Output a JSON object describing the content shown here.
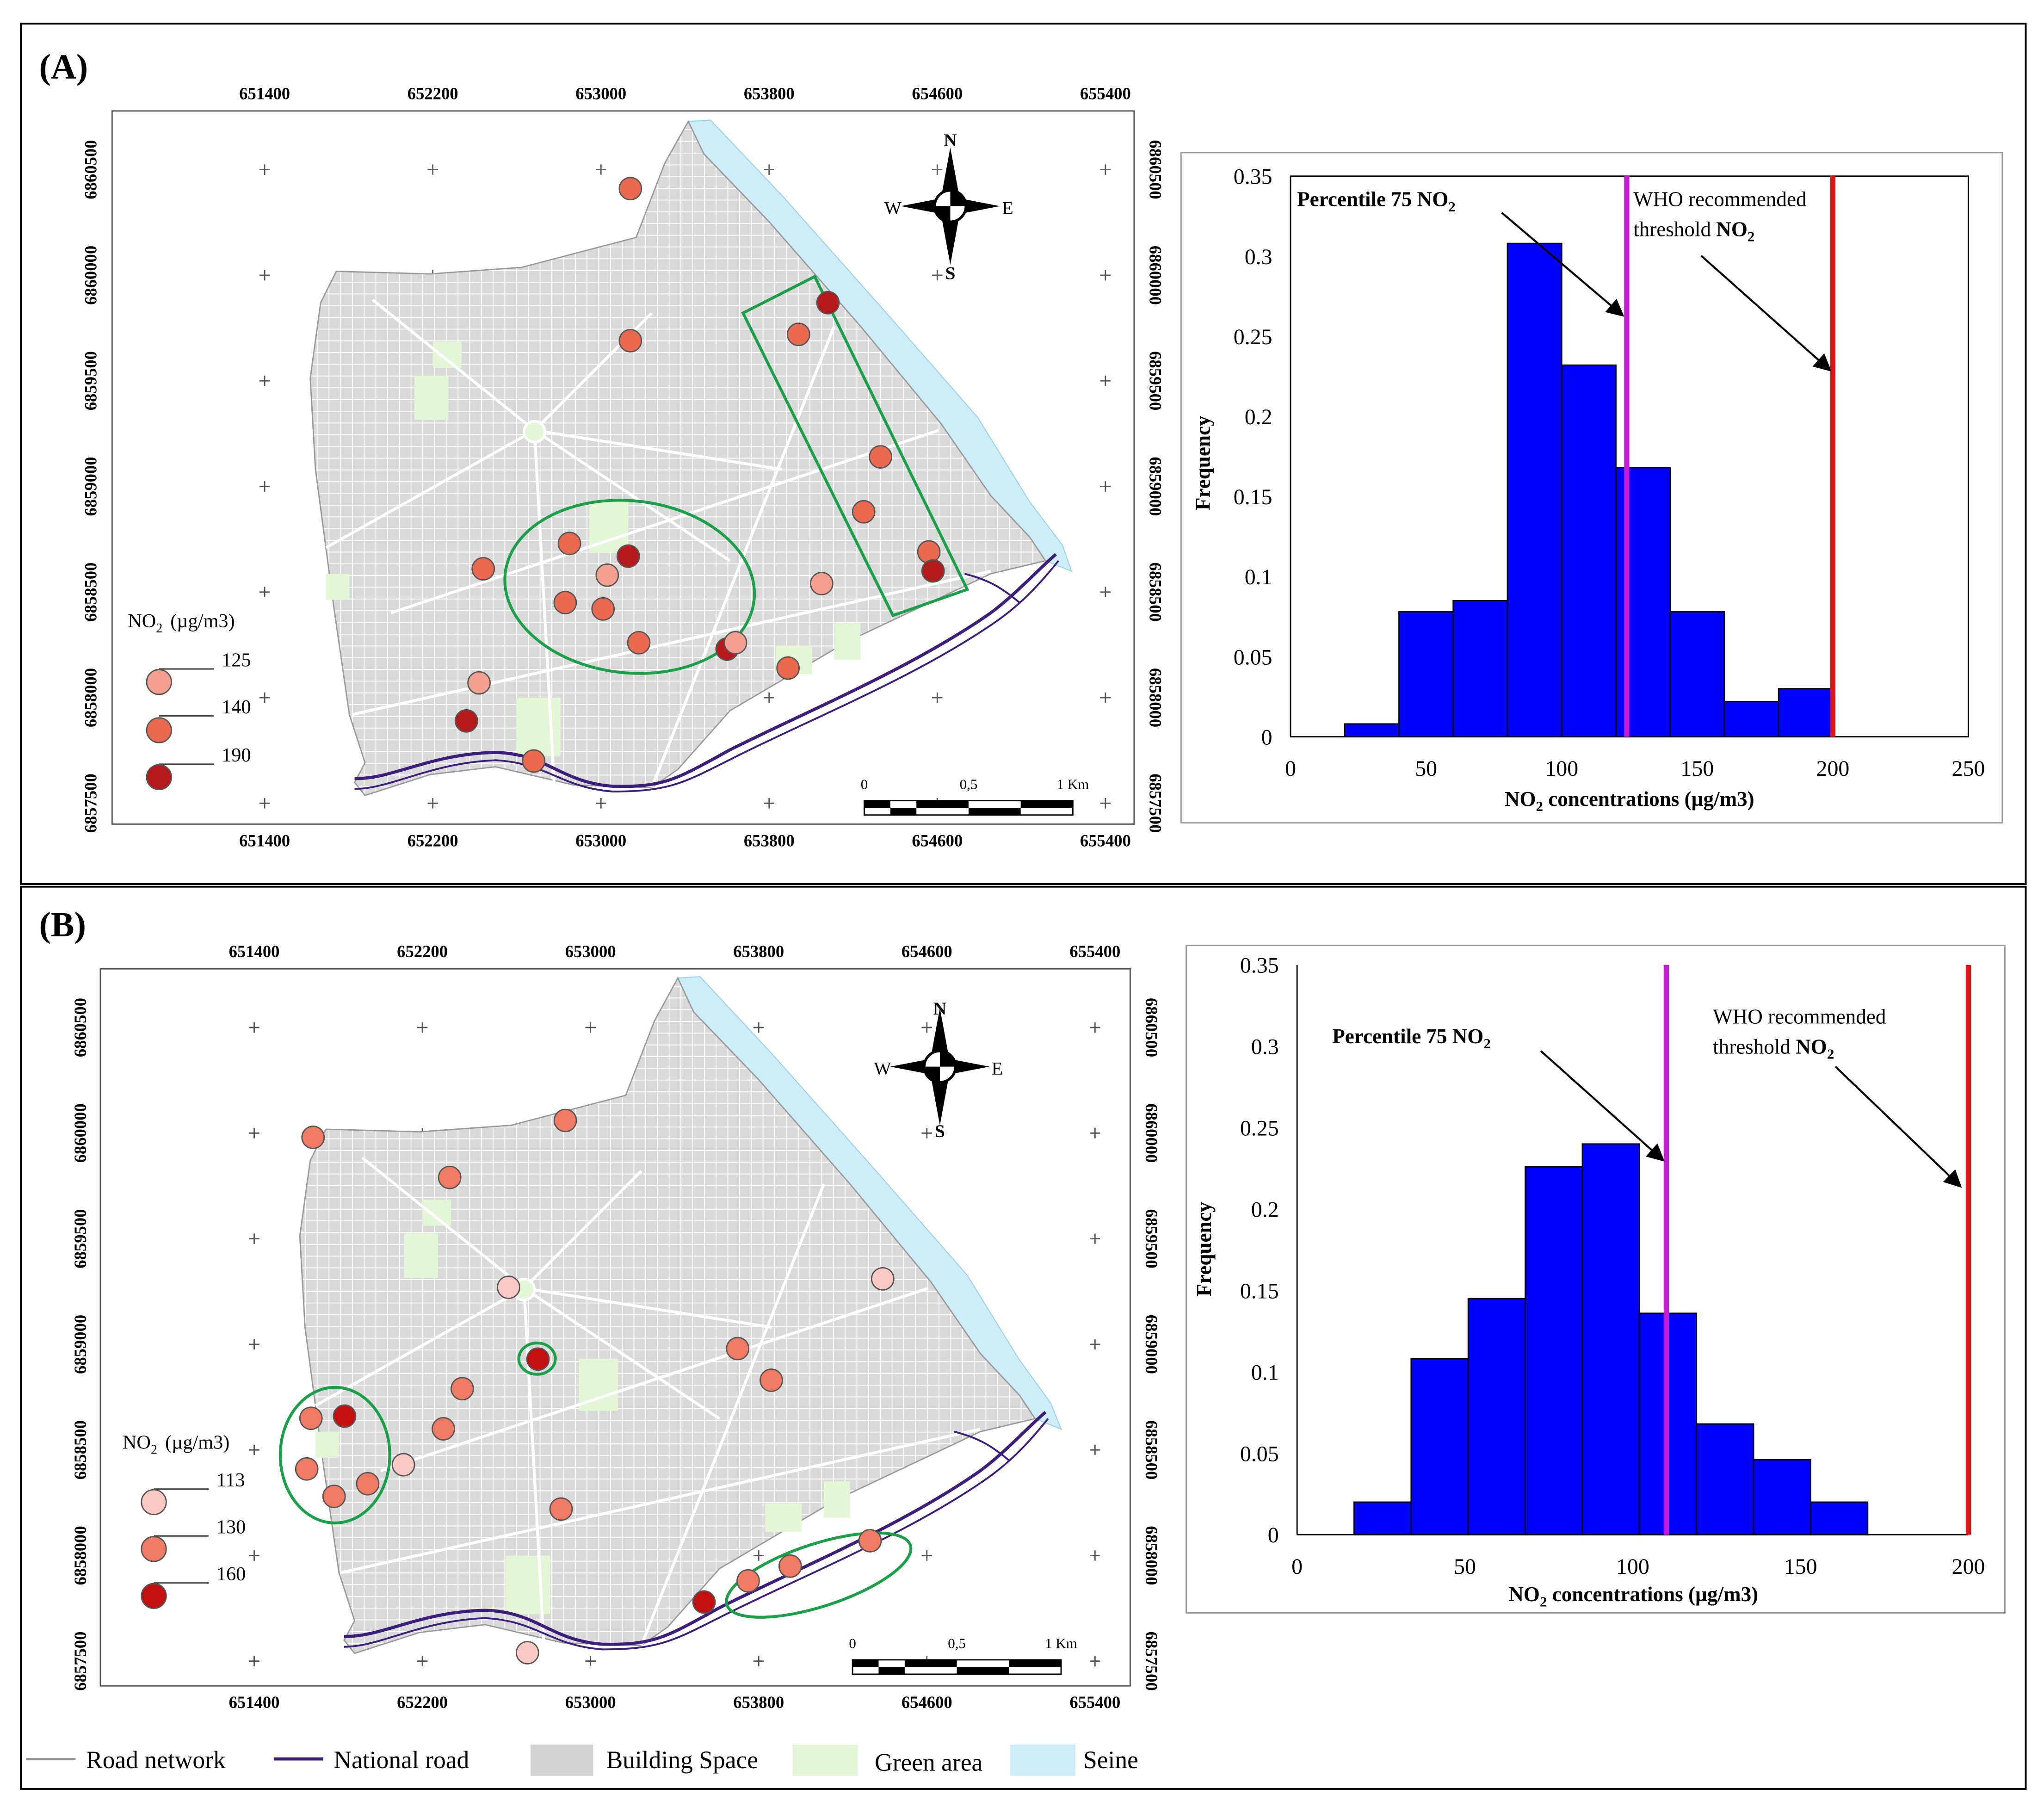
{
  "panels": [
    {
      "label": "(A)",
      "map": {
        "x_ticks": [
          "651400",
          "652200",
          "653000",
          "653800",
          "654600",
          "655400"
        ],
        "y_ticks": [
          "6860500",
          "6860000",
          "6859500",
          "6859000",
          "6858500",
          "6858000",
          "6857500"
        ],
        "compass": {
          "n": "N",
          "s": "S",
          "e": "E",
          "w": "W"
        },
        "scale": {
          "labels": [
            "0",
            "0,5",
            "1 Km"
          ]
        },
        "legend": {
          "title": "NO",
          "title_sub": "2",
          "title_unit": "(µg/m3)",
          "values": [
            "125",
            "140",
            "190"
          ]
        },
        "symbol_colors": [
          "#f4a090",
          "#ea6a50",
          "#b51a1a"
        ],
        "stations": [
          {
            "x": 653140,
            "y": 6860410,
            "v": 140
          },
          {
            "x": 654080,
            "y": 6859870,
            "v": 190
          },
          {
            "x": 653940,
            "y": 6859720,
            "v": 140
          },
          {
            "x": 653140,
            "y": 6859690,
            "v": 140
          },
          {
            "x": 654330,
            "y": 6859140,
            "v": 140
          },
          {
            "x": 654250,
            "y": 6858880,
            "v": 140
          },
          {
            "x": 654560,
            "y": 6858690,
            "v": 140
          },
          {
            "x": 654580,
            "y": 6858600,
            "v": 190
          },
          {
            "x": 653130,
            "y": 6858670,
            "v": 190
          },
          {
            "x": 652850,
            "y": 6858730,
            "v": 140
          },
          {
            "x": 652440,
            "y": 6858610,
            "v": 140
          },
          {
            "x": 653030,
            "y": 6858580,
            "v": 125
          },
          {
            "x": 654050,
            "y": 6858540,
            "v": 125
          },
          {
            "x": 652830,
            "y": 6858450,
            "v": 140
          },
          {
            "x": 653010,
            "y": 6858420,
            "v": 140
          },
          {
            "x": 653180,
            "y": 6858260,
            "v": 140
          },
          {
            "x": 653600,
            "y": 6858230,
            "v": 190
          },
          {
            "x": 653640,
            "y": 6858260,
            "v": 125
          },
          {
            "x": 653890,
            "y": 6858140,
            "v": 140
          },
          {
            "x": 652420,
            "y": 6858070,
            "v": 125
          },
          {
            "x": 652360,
            "y": 6857890,
            "v": 190
          },
          {
            "x": 652680,
            "y": 6857700,
            "v": 140
          }
        ]
      },
      "chart": {
        "ylabel": "Frequency",
        "xlabel": {
          "pre": "NO",
          "sub": "2",
          "post": " concentrations  (µg/m3)"
        },
        "y_ticks": [
          "0",
          "0.05",
          "0.1",
          "0.15",
          "0.2",
          "0.25",
          "0.3",
          "0.35"
        ],
        "x_ticks": [
          "0",
          "50",
          "100",
          "150",
          "200",
          "250"
        ],
        "annot_p75": {
          "pre": "Percentile 75  NO",
          "sub": "2"
        },
        "annot_who": {
          "line1": "WHO recommended",
          "line2_pre": "threshold ",
          "line2_bold": "NO",
          "line2_sub": "2"
        }
      }
    },
    {
      "label": "(B)",
      "map": {
        "x_ticks": [
          "651400",
          "652200",
          "653000",
          "653800",
          "654600",
          "655400"
        ],
        "y_ticks": [
          "6860500",
          "6860000",
          "6859500",
          "6859000",
          "6858500",
          "6858000",
          "6857500"
        ],
        "compass": {
          "n": "N",
          "s": "S",
          "e": "E",
          "w": "W"
        },
        "scale": {
          "labels": [
            "0",
            "0,5",
            "1 Km"
          ]
        },
        "legend": {
          "title": "NO",
          "title_sub": "2",
          "title_unit": "(µg/m3)",
          "values": [
            "113",
            "130",
            "160"
          ]
        },
        "symbol_colors": [
          "#fbc9c4",
          "#f07a62",
          "#c40f0f"
        ],
        "stations": [
          {
            "x": 651680,
            "y": 6859980,
            "v": 130
          },
          {
            "x": 652880,
            "y": 6860060,
            "v": 130
          },
          {
            "x": 652330,
            "y": 6859790,
            "v": 130
          },
          {
            "x": 652610,
            "y": 6859270,
            "v": 113
          },
          {
            "x": 652750,
            "y": 6858930,
            "v": 160
          },
          {
            "x": 652390,
            "y": 6858790,
            "v": 130
          },
          {
            "x": 652300,
            "y": 6858600,
            "v": 130
          },
          {
            "x": 651670,
            "y": 6858650,
            "v": 130
          },
          {
            "x": 651830,
            "y": 6858660,
            "v": 160
          },
          {
            "x": 652110,
            "y": 6858430,
            "v": 113
          },
          {
            "x": 651650,
            "y": 6858410,
            "v": 130
          },
          {
            "x": 651940,
            "y": 6858340,
            "v": 130
          },
          {
            "x": 651780,
            "y": 6858280,
            "v": 130
          },
          {
            "x": 652860,
            "y": 6858220,
            "v": 130
          },
          {
            "x": 653700,
            "y": 6858980,
            "v": 130
          },
          {
            "x": 653860,
            "y": 6858830,
            "v": 130
          },
          {
            "x": 654390,
            "y": 6859310,
            "v": 113
          },
          {
            "x": 654330,
            "y": 6858070,
            "v": 130
          },
          {
            "x": 653950,
            "y": 6857950,
            "v": 130
          },
          {
            "x": 653750,
            "y": 6857880,
            "v": 130
          },
          {
            "x": 653540,
            "y": 6857780,
            "v": 160
          },
          {
            "x": 652700,
            "y": 6857540,
            "v": 113
          }
        ]
      },
      "chart": {
        "ylabel": "Frequency",
        "xlabel": {
          "pre": "NO",
          "sub": "2",
          "post": " concentrations  (µg/m3)"
        },
        "y_ticks": [
          "0",
          "0.05",
          "0.1",
          "0.15",
          "0.2",
          "0.25",
          "0.3",
          "0.35"
        ],
        "x_ticks": [
          "0",
          "50",
          "100",
          "150",
          "200"
        ],
        "annot_p75": {
          "pre": "Percentile 75  NO",
          "sub": "2"
        },
        "annot_who": {
          "line1": "WHO recommended",
          "line2_pre": "threshold ",
          "line2_bold": "NO",
          "line2_sub": "2"
        }
      }
    }
  ],
  "bottom_legend": {
    "items": [
      {
        "label": "Road network",
        "color": "#9a9a9a"
      },
      {
        "label": "National road",
        "color": "#3b1f7a"
      },
      {
        "label": "Building Space",
        "color": "#d3d3d3"
      },
      {
        "label": "Green area",
        "color": "#e3f7d6"
      },
      {
        "label": "Seine",
        "color": "#cdeef8"
      }
    ]
  },
  "chart_data": [
    {
      "type": "bar",
      "title": "",
      "xlabel": "NO2 concentrations  (µg/m3)",
      "ylabel": "Frequency",
      "bin_edges": [
        20,
        40,
        60,
        80,
        100,
        120,
        140,
        160,
        180,
        200
      ],
      "values": [
        0.008,
        0.078,
        0.085,
        0.308,
        0.232,
        0.168,
        0.078,
        0.022,
        0.03
      ],
      "xlim": [
        0,
        250
      ],
      "ylim": [
        0,
        0.35
      ],
      "reference_lines": [
        {
          "label": "Percentile 75  NO2",
          "x": 124,
          "color": "#c61ad9"
        },
        {
          "label": "WHO recommended threshold NO2",
          "x": 200,
          "color": "#dd1515"
        }
      ]
    },
    {
      "type": "bar",
      "title": "",
      "xlabel": "NO2 concentrations  (µg/m3)",
      "ylabel": "Frequency",
      "bin_edges": [
        17,
        34,
        51,
        68,
        85,
        102,
        119,
        136,
        153,
        170
      ],
      "values": [
        0.02,
        0.108,
        0.145,
        0.226,
        0.24,
        0.136,
        0.068,
        0.046,
        0.02
      ],
      "xlim": [
        0,
        200
      ],
      "ylim": [
        0,
        0.35
      ],
      "reference_lines": [
        {
          "label": "Percentile 75  NO2",
          "x": 110,
          "color": "#c61ad9"
        },
        {
          "label": "WHO recommended threshold NO2",
          "x": 200,
          "color": "#dd1515"
        }
      ]
    }
  ]
}
